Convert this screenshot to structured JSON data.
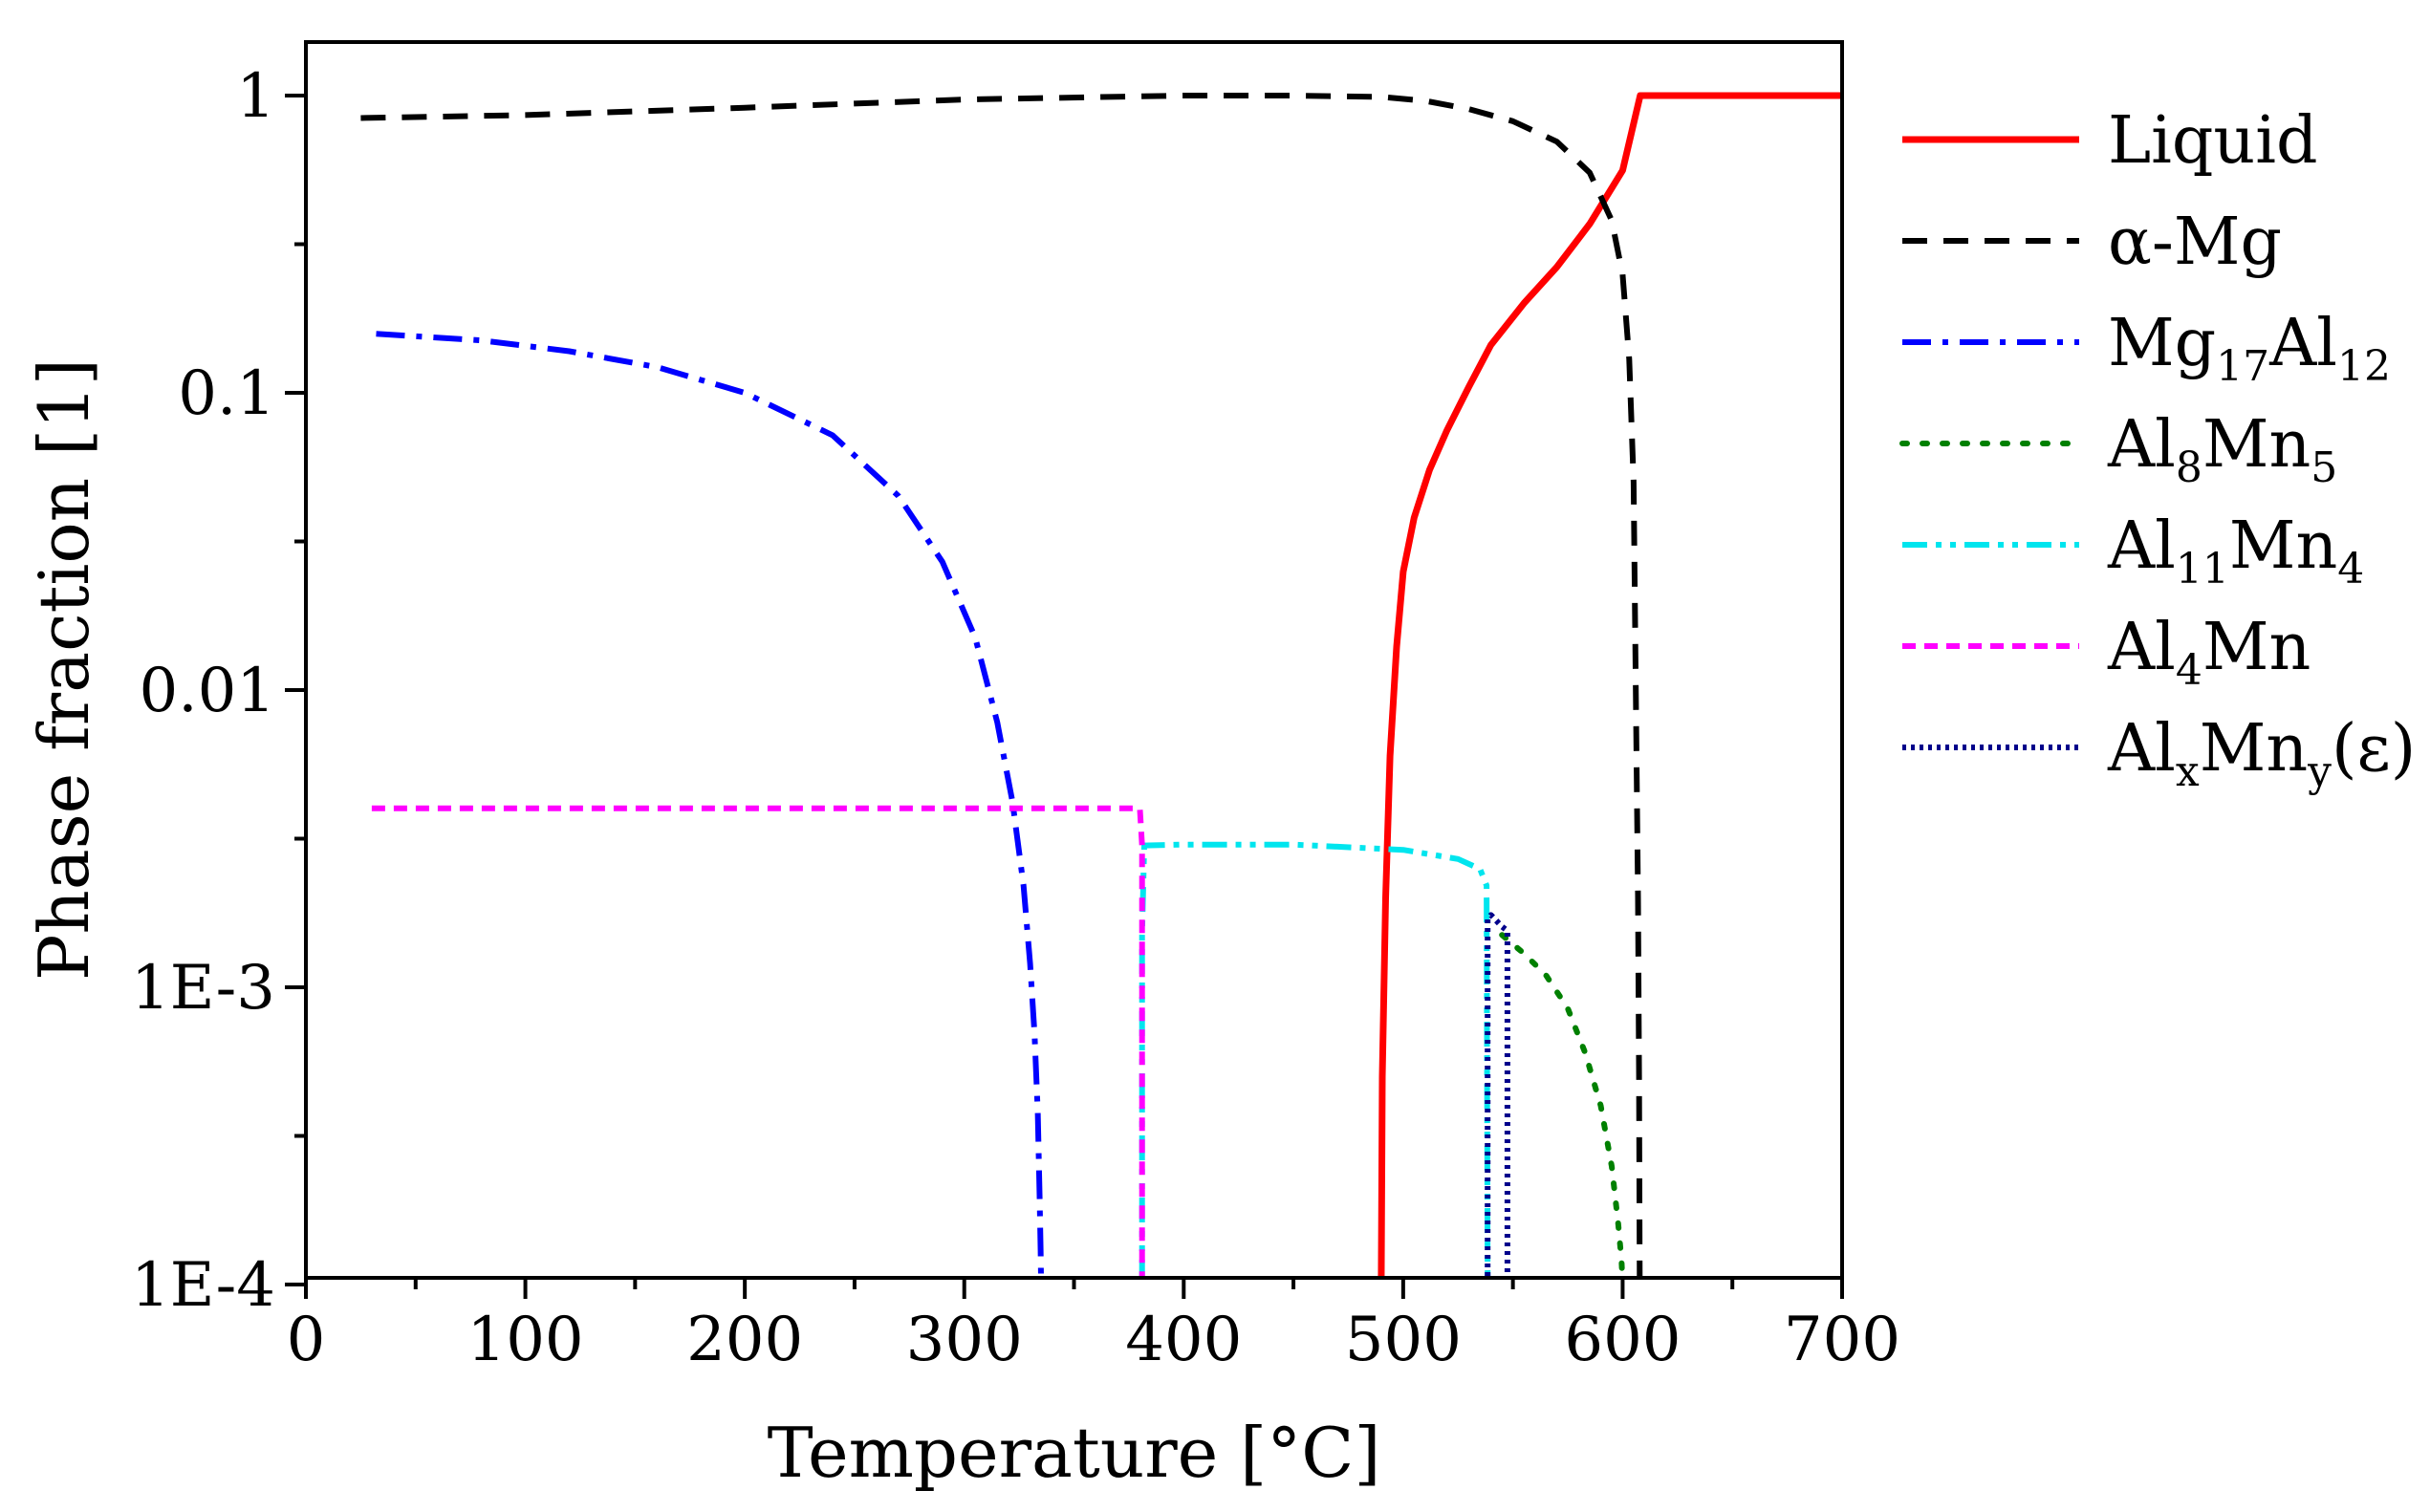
{
  "chart_data": {
    "type": "line",
    "xlabel": "Temperature [°C]",
    "ylabel": "Phase fraction [1]",
    "xscale": "linear",
    "yscale": "log",
    "xlim": [
      0,
      700
    ],
    "ylim": [
      0.0001,
      1.5
    ],
    "grid": false,
    "legend_position": "right-outside",
    "xticks": [
      0,
      100,
      200,
      300,
      400,
      500,
      600,
      700
    ],
    "xtick_labels": [
      "0",
      "100",
      "200",
      "300",
      "400",
      "500",
      "600",
      "700"
    ],
    "yticks": [
      0.0001,
      0.001,
      0.01,
      0.1,
      1
    ],
    "ytick_labels": [
      "1E-4",
      "1E-3",
      "0.01",
      "0.1",
      "1"
    ],
    "series": [
      {
        "name": "Liquid",
        "legend": {
          "base": "Liquid",
          "parts": []
        },
        "color": "#ff0000",
        "dash": "solid",
        "x": [
          490,
          490.5,
          492,
          494,
          497,
          500,
          505,
          512,
          520,
          530,
          540,
          555,
          570,
          585,
          600,
          608,
          650,
          700
        ],
        "y": [
          0.0001,
          0.0005,
          0.002,
          0.006,
          0.014,
          0.025,
          0.038,
          0.055,
          0.075,
          0.105,
          0.145,
          0.2,
          0.265,
          0.37,
          0.56,
          1.0,
          1.0,
          1.0
        ]
      },
      {
        "name": "α-Mg",
        "legend": {
          "base": "α-Mg",
          "parts": []
        },
        "color": "#000000",
        "dash": "dash",
        "x": [
          25,
          100,
          200,
          300,
          400,
          450,
          490,
          510,
          530,
          550,
          570,
          585,
          595,
          600,
          603,
          605,
          606,
          607,
          607.5,
          607.8
        ],
        "y": [
          0.84,
          0.86,
          0.91,
          0.97,
          1.0,
          1.0,
          0.99,
          0.96,
          0.9,
          0.82,
          0.7,
          0.55,
          0.38,
          0.25,
          0.13,
          0.05,
          0.01,
          0.002,
          0.0005,
          0.0001
        ]
      },
      {
        "name": "Mg17Al12",
        "legend": {
          "base": "Mg",
          "parts": [
            [
              "17",
              "sub"
            ],
            [
              "Al",
              "base"
            ],
            [
              "12",
              "sub"
            ]
          ]
        },
        "color": "#0000ff",
        "dash": "dashdot",
        "x": [
          32,
          80,
          120,
          160,
          200,
          240,
          270,
          290,
          305,
          315,
          322,
          327,
          330,
          332,
          333.5,
          334.3,
          334.8,
          335
        ],
        "y": [
          0.158,
          0.15,
          0.138,
          0.122,
          0.1,
          0.072,
          0.045,
          0.027,
          0.015,
          0.0078,
          0.0042,
          0.0022,
          0.0012,
          0.0007,
          0.00038,
          0.0002,
          0.00013,
          0.0001
        ]
      },
      {
        "name": "Al8Mn5",
        "legend": {
          "base": "Al",
          "parts": [
            [
              "8",
              "sub"
            ],
            [
              "Mn",
              "base"
            ],
            [
              "5",
              "sub"
            ]
          ]
        },
        "color": "#008000",
        "dash": "dot",
        "x": [
          545,
          555,
          565,
          575,
          583,
          590,
          595,
          598,
          599.5,
          600
        ],
        "y": [
          0.0015,
          0.0013,
          0.0011,
          0.00085,
          0.0006,
          0.0004,
          0.00025,
          0.00016,
          0.00012,
          0.0001
        ]
      },
      {
        "name": "Al11Mn4",
        "legend": {
          "base": "Al",
          "parts": [
            [
              "11",
              "sub"
            ],
            [
              "Mn",
              "base"
            ],
            [
              "4",
              "sub"
            ]
          ]
        },
        "color": "#00e5ee",
        "dash": "dashdotdot",
        "x": [
          381,
          381,
          382,
          400,
          450,
          500,
          525,
          535,
          538,
          538.5
        ],
        "y": [
          0.0001,
          0.0015,
          0.003,
          0.00302,
          0.00302,
          0.0029,
          0.0027,
          0.0025,
          0.0022,
          0.0001
        ]
      },
      {
        "name": "Al4Mn",
        "legend": {
          "base": "Al",
          "parts": [
            [
              "4",
              "sub"
            ],
            [
              "Mn",
              "base"
            ]
          ]
        },
        "color": "#ff00ff",
        "dash": "shortdash",
        "x": [
          30,
          100,
          200,
          300,
          380,
          381,
          381
        ],
        "y": [
          0.004,
          0.004,
          0.004,
          0.004,
          0.004,
          0.003,
          0.0001
        ]
      },
      {
        "name": "AlxMny(ε)",
        "legend": {
          "base": "Al",
          "parts": [
            [
              "x",
              "sub"
            ],
            [
              "Mn",
              "base"
            ],
            [
              "y",
              "sub"
            ],
            [
              "(ε)",
              "base"
            ]
          ]
        },
        "color": "#00008b",
        "dash": "finedot",
        "x": [
          538.5,
          538.5,
          540,
          545,
          547.5,
          547.5
        ],
        "y": [
          0.0001,
          0.0017,
          0.00175,
          0.0016,
          0.00155,
          0.0001
        ]
      }
    ]
  }
}
